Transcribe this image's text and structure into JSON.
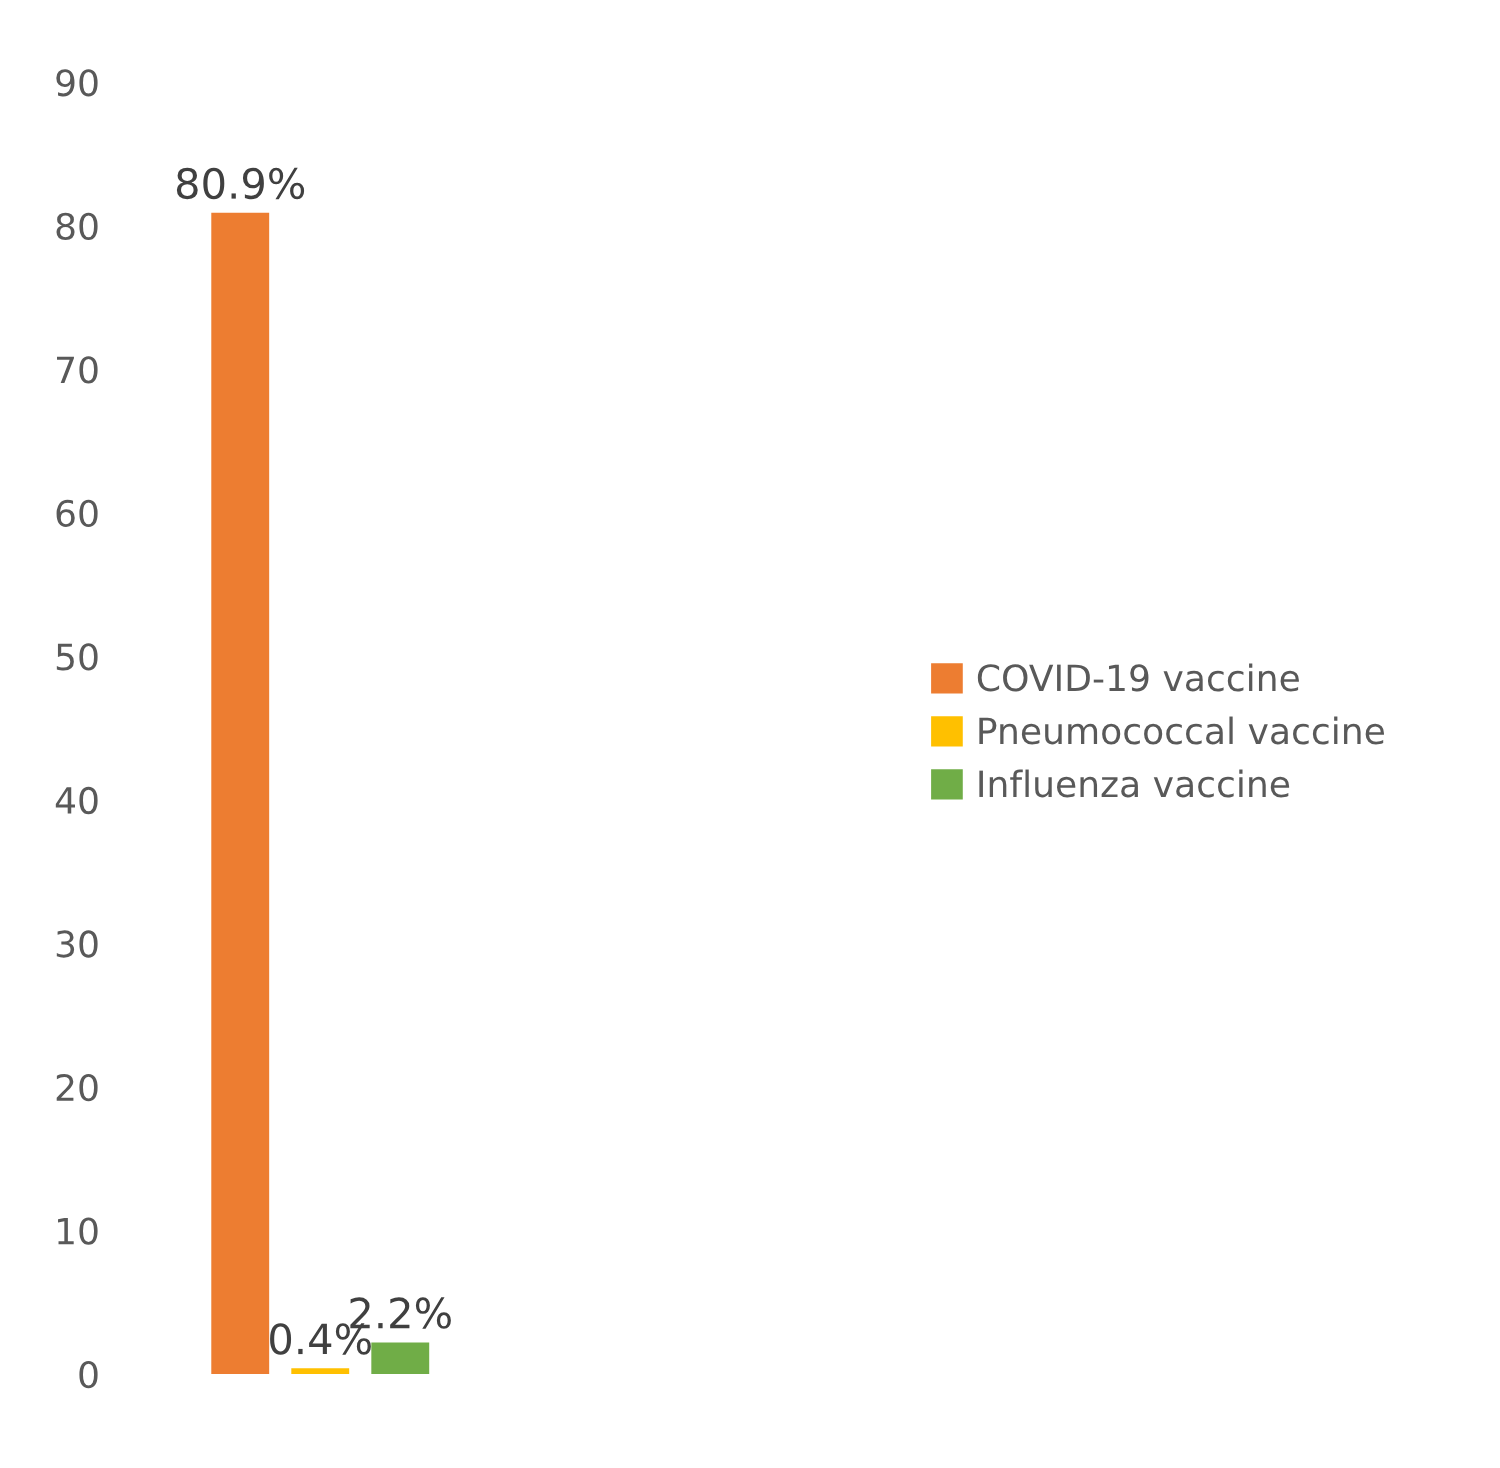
{
  "chart_data": {
    "type": "bar",
    "categories": [
      null
    ],
    "series": [
      {
        "name": "COVID-19 vaccine",
        "color": "#ed7d31",
        "values": [
          80.9
        ],
        "value_labels": [
          "80.9%"
        ]
      },
      {
        "name": "Pneumococcal vaccine",
        "color": "#ffc000",
        "values": [
          0.4
        ],
        "value_labels": [
          "0.4%"
        ]
      },
      {
        "name": "Influenza vaccine",
        "color": "#70ad47",
        "values": [
          2.2
        ],
        "value_labels": [
          "2.2%"
        ]
      }
    ],
    "ylim": [
      0,
      90
    ],
    "yticks": [
      0,
      10,
      20,
      30,
      40,
      50,
      60,
      70,
      80,
      90
    ],
    "grid": false,
    "legend": "right"
  }
}
